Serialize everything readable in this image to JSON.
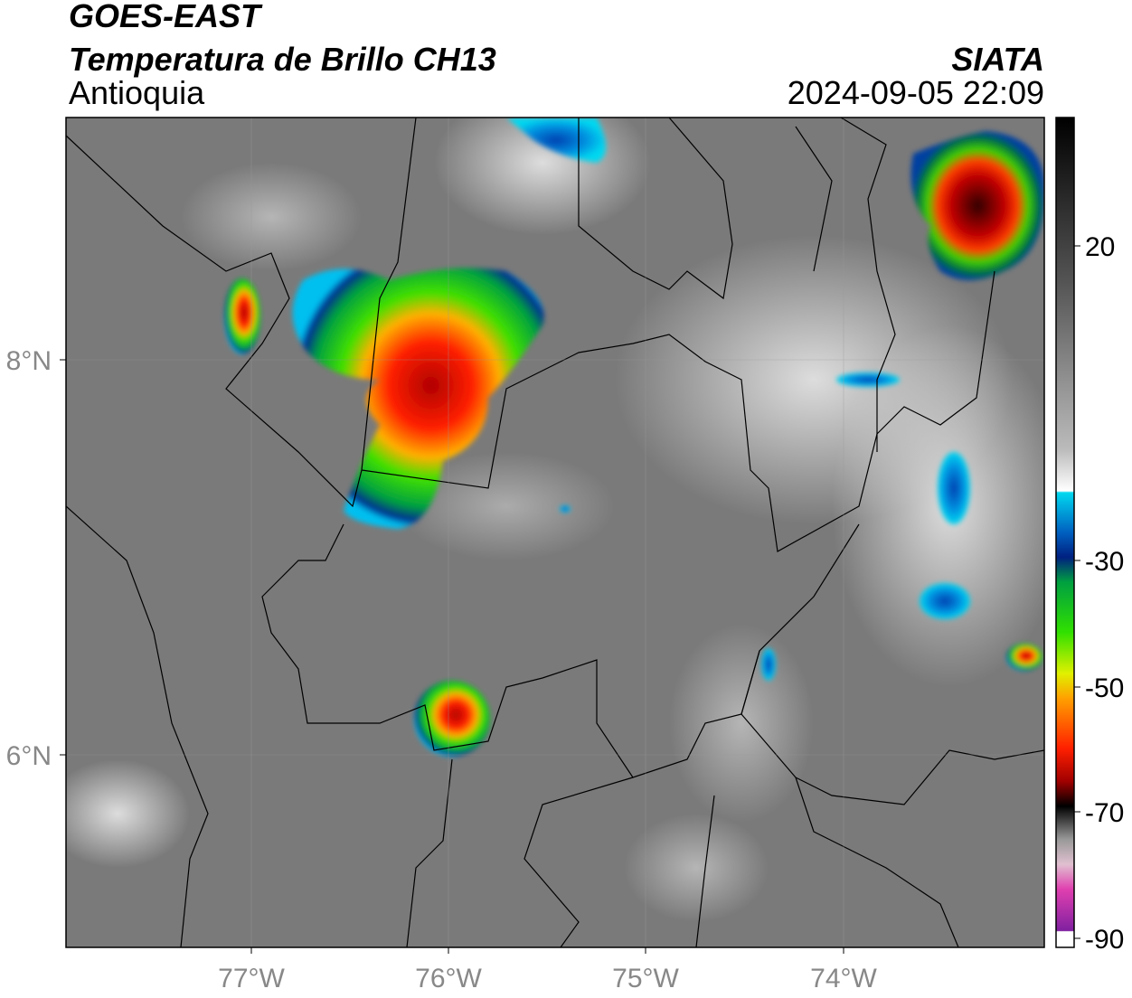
{
  "header": {
    "title": "GOES-EAST",
    "subtitle": "Temperatura de Brillo CH13",
    "region": "Antioquia",
    "agency": "SIATA",
    "datetime": "2024-09-05 22:09"
  },
  "map": {
    "x_ticks": [
      "77°W",
      "76°W",
      "75°W",
      "74°W"
    ],
    "y_ticks": [
      "8°N",
      "6°N"
    ]
  },
  "colorbar": {
    "ticks": [
      20,
      -30,
      -50,
      -70,
      -90
    ]
  }
}
